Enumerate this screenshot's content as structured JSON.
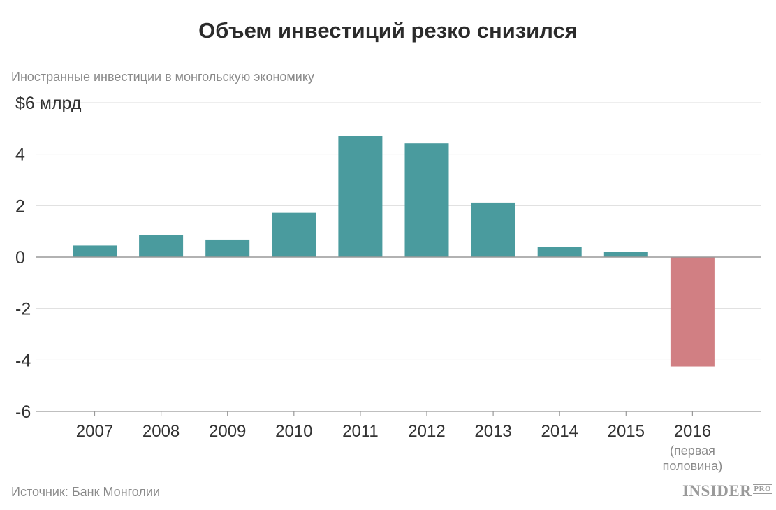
{
  "title": "Объем инвестиций резко снизился",
  "subtitle": "Иностранные инвестиции в монгольскую экономику",
  "source": "Источник: Банк Монголии",
  "logo": {
    "main": "INSIDER",
    "suffix": "PRO"
  },
  "chart_data": {
    "type": "bar",
    "title": "Объем инвестиций резко снизился",
    "subtitle": "Иностранные инвестиции в монгольскую экономику",
    "categories": [
      "2007",
      "2008",
      "2009",
      "2010",
      "2011",
      "2012",
      "2013",
      "2014",
      "2015",
      "2016"
    ],
    "category_notes": [
      "",
      "",
      "",
      "",
      "",
      "",
      "",
      "",
      "",
      "(первая половина)"
    ],
    "values": [
      0.45,
      0.85,
      0.68,
      1.72,
      4.72,
      4.42,
      2.12,
      0.4,
      0.19,
      -4.25
    ],
    "y_tick_labels": [
      "$6 млрд",
      "4",
      "2",
      "0",
      "-2",
      "-4",
      "-6"
    ],
    "y_ticks": [
      6,
      4,
      2,
      0,
      -2,
      -4,
      -6
    ],
    "ylim": [
      -6,
      6
    ],
    "grid": true,
    "colors": {
      "positive": "#4a9b9e",
      "negative": "#d17f83",
      "grid": "#dddddd",
      "zero": "#999999"
    }
  }
}
